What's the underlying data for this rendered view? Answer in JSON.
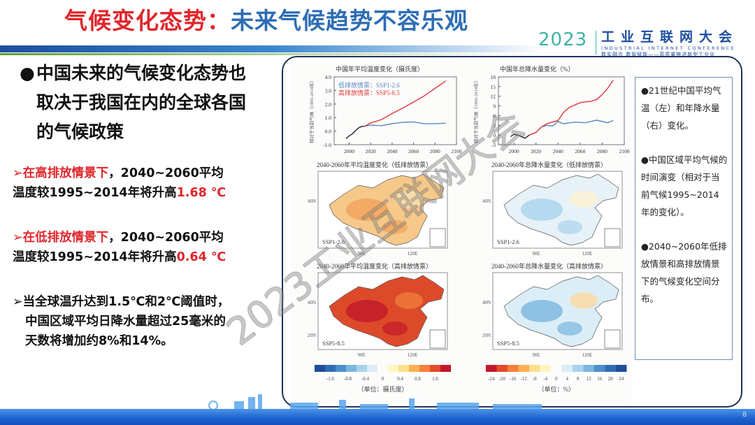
{
  "title": {
    "part1": "气候变化态势：",
    "part2": "未来气候趋势不容乐观"
  },
  "logo": {
    "year": "2023",
    "name": "工业互联网大会",
    "english": "INDUSTRIAL INTERNET CONFERENCE",
    "slogan": "数实融合 数智赋能——高质量推进新型工业化"
  },
  "main_point": {
    "lines": [
      "中国未来的气候变化态势也",
      "取决于我国在内的全球各国",
      "的气候政策"
    ]
  },
  "points": [
    {
      "lines": [
        {
          "prefix": "在高排放情景下",
          "text": "，2040~2060平均"
        },
        {
          "text": "温度较1995~2014年将升高",
          "value": "1.68 ℃"
        }
      ]
    },
    {
      "lines": [
        {
          "prefix": "在低排放情景下",
          "text": "，2040~2060平均"
        },
        {
          "text": "温度较1995~2014年将升高",
          "value": "0.64 ℃"
        }
      ]
    },
    {
      "lines": [
        {
          "text": "当全球温升达到1.5℃和2℃阈值时，"
        },
        {
          "text": "中国区域平均日降水量超过25毫米的"
        },
        {
          "text": "天数将增加约8%和14%。"
        }
      ]
    }
  ],
  "notes": [
    "21世纪中国平均气温（左）和年降水量（右）变化。",
    "中国区域平均气候的时间演变（相对于当前气候1995~2014年的变化）。",
    "2040~2060年低排放情景和高排放情景下的气候变化空间分布。"
  ],
  "chart_data": [
    {
      "type": "line",
      "title": "中国年平均温度变化（摄氏度）",
      "ylabel": "相对于当前气候（1995-2014年）",
      "xlim": [
        1986,
        2100
      ],
      "ylim": [
        -1.0,
        4.0
      ],
      "xticks": [
        "2000",
        "2020",
        "2040",
        "2060",
        "2080",
        "2100"
      ],
      "yticks": [
        "-1.0",
        "0.0",
        "1.0",
        "2.0",
        "3.0",
        "4.0"
      ],
      "legend": "top-left",
      "series": [
        {
          "name": "",
          "color": "#222222",
          "x": [
            1997,
            2000,
            2003,
            2006,
            2009,
            2012,
            2014
          ],
          "y": [
            -0.55,
            -0.35,
            -0.2,
            0.05,
            0.25,
            0.35,
            0.35
          ]
        },
        {
          "name": "低排放情景：SSP1-2.6",
          "color": "#5b86c9",
          "x": [
            2014,
            2020,
            2025,
            2030,
            2040,
            2050,
            2060,
            2070,
            2080,
            2090
          ],
          "y": [
            0.35,
            0.45,
            0.42,
            0.4,
            0.55,
            0.65,
            0.68,
            0.55,
            0.55,
            0.58
          ]
        },
        {
          "name": "高排放情景：SSP5-8.5",
          "color": "#e0393b",
          "x": [
            2014,
            2020,
            2030,
            2040,
            2050,
            2060,
            2070,
            2080,
            2090
          ],
          "y": [
            0.35,
            0.6,
            0.85,
            1.3,
            1.7,
            2.15,
            2.6,
            3.15,
            3.7
          ]
        }
      ]
    },
    {
      "type": "line",
      "title": "中国年总降水量变化（%）",
      "ylabel": "相对于当前气候（1995-2014年）",
      "xlim": [
        1986,
        2100
      ],
      "ylim": [
        -3,
        18
      ],
      "xticks": [
        "2000",
        "2020",
        "2040",
        "2060",
        "2080",
        "2100"
      ],
      "yticks": [
        "-3",
        "0",
        "3",
        "6",
        "9",
        "12",
        "15",
        "18"
      ],
      "series": [
        {
          "name": "",
          "color": "#222222",
          "x": [
            1997,
            2000,
            2003,
            2007,
            2010,
            2014
          ],
          "y": [
            -0.5,
            0.2,
            0,
            -0.5,
            -1.0,
            0
          ]
        },
        {
          "name": "低排放情景：SSP1-2.6",
          "color": "#5b86c9",
          "x": [
            2014,
            2020,
            2025,
            2030,
            2035,
            2040,
            2045,
            2055,
            2065,
            2075,
            2085,
            2090
          ],
          "y": [
            0,
            0.8,
            2.5,
            3.0,
            2.8,
            4.2,
            3.5,
            4.0,
            3.8,
            4.6,
            3.8,
            4.5
          ]
        },
        {
          "name": "高排放情景：SSP5-8.5",
          "color": "#e0393b",
          "x": [
            2014,
            2020,
            2025,
            2030,
            2040,
            2045,
            2050,
            2060,
            2070,
            2075,
            2080,
            2085,
            2090
          ],
          "y": [
            0,
            0.8,
            2.5,
            3.5,
            4.5,
            7.0,
            8.5,
            10.0,
            10.5,
            11.0,
            12.5,
            14.5,
            17.0
          ]
        }
      ]
    }
  ],
  "maps": [
    {
      "title": "2040-2060年平均温度变化（低排放情景）",
      "scenario": "SSP1-2.6",
      "kind": "temp-low"
    },
    {
      "title": "2040-2060年总降水量变化（低排放情景）",
      "scenario": "SSP1-2.6",
      "kind": "precip-low"
    },
    {
      "title": "2040-2060年平均温度变化（高排放情景）",
      "scenario": "SSP5-8.5",
      "kind": "temp-high"
    },
    {
      "title": "2040-2060年总降水量变化（高排放情景）",
      "scenario": "SSP5-8.5",
      "kind": "precip-high"
    }
  ],
  "map_axes": {
    "lon": [
      "90E",
      "120E"
    ],
    "lat": [
      "40N",
      "20N"
    ]
  },
  "colorbars": [
    {
      "ticks": [
        "-1.6",
        "-0.8",
        "-0.4",
        "0",
        "0.4",
        "0.8",
        "1.6"
      ],
      "unit": "（单位：摄氏度）",
      "colors": [
        "#1f4e99",
        "#2f6db5",
        "#4a90cc",
        "#7ab6de",
        "#a9d3ec",
        "#dbeef8",
        "",
        "#fff5c0",
        "#fedf8b",
        "#fdb051",
        "#f7803a",
        "#e44c2a",
        "#c2182a"
      ]
    },
    {
      "ticks": [
        "-24",
        "-20",
        "-16",
        "-12",
        "-8",
        "-4",
        "0",
        "4",
        "8",
        "12",
        "16",
        "20",
        "24"
      ],
      "unit": "（单位：%）",
      "colors": [
        "#c2182a",
        "#e44c2a",
        "#f7803a",
        "#fdb051",
        "#fedf8b",
        "#fff5c0",
        "",
        "#dbeef8",
        "#a9d3ec",
        "#7ab6de",
        "#4a90cc",
        "#2f6db5",
        "#1f4e99"
      ]
    }
  ],
  "watermark": "2023工业互联网大会",
  "page_number": "8"
}
